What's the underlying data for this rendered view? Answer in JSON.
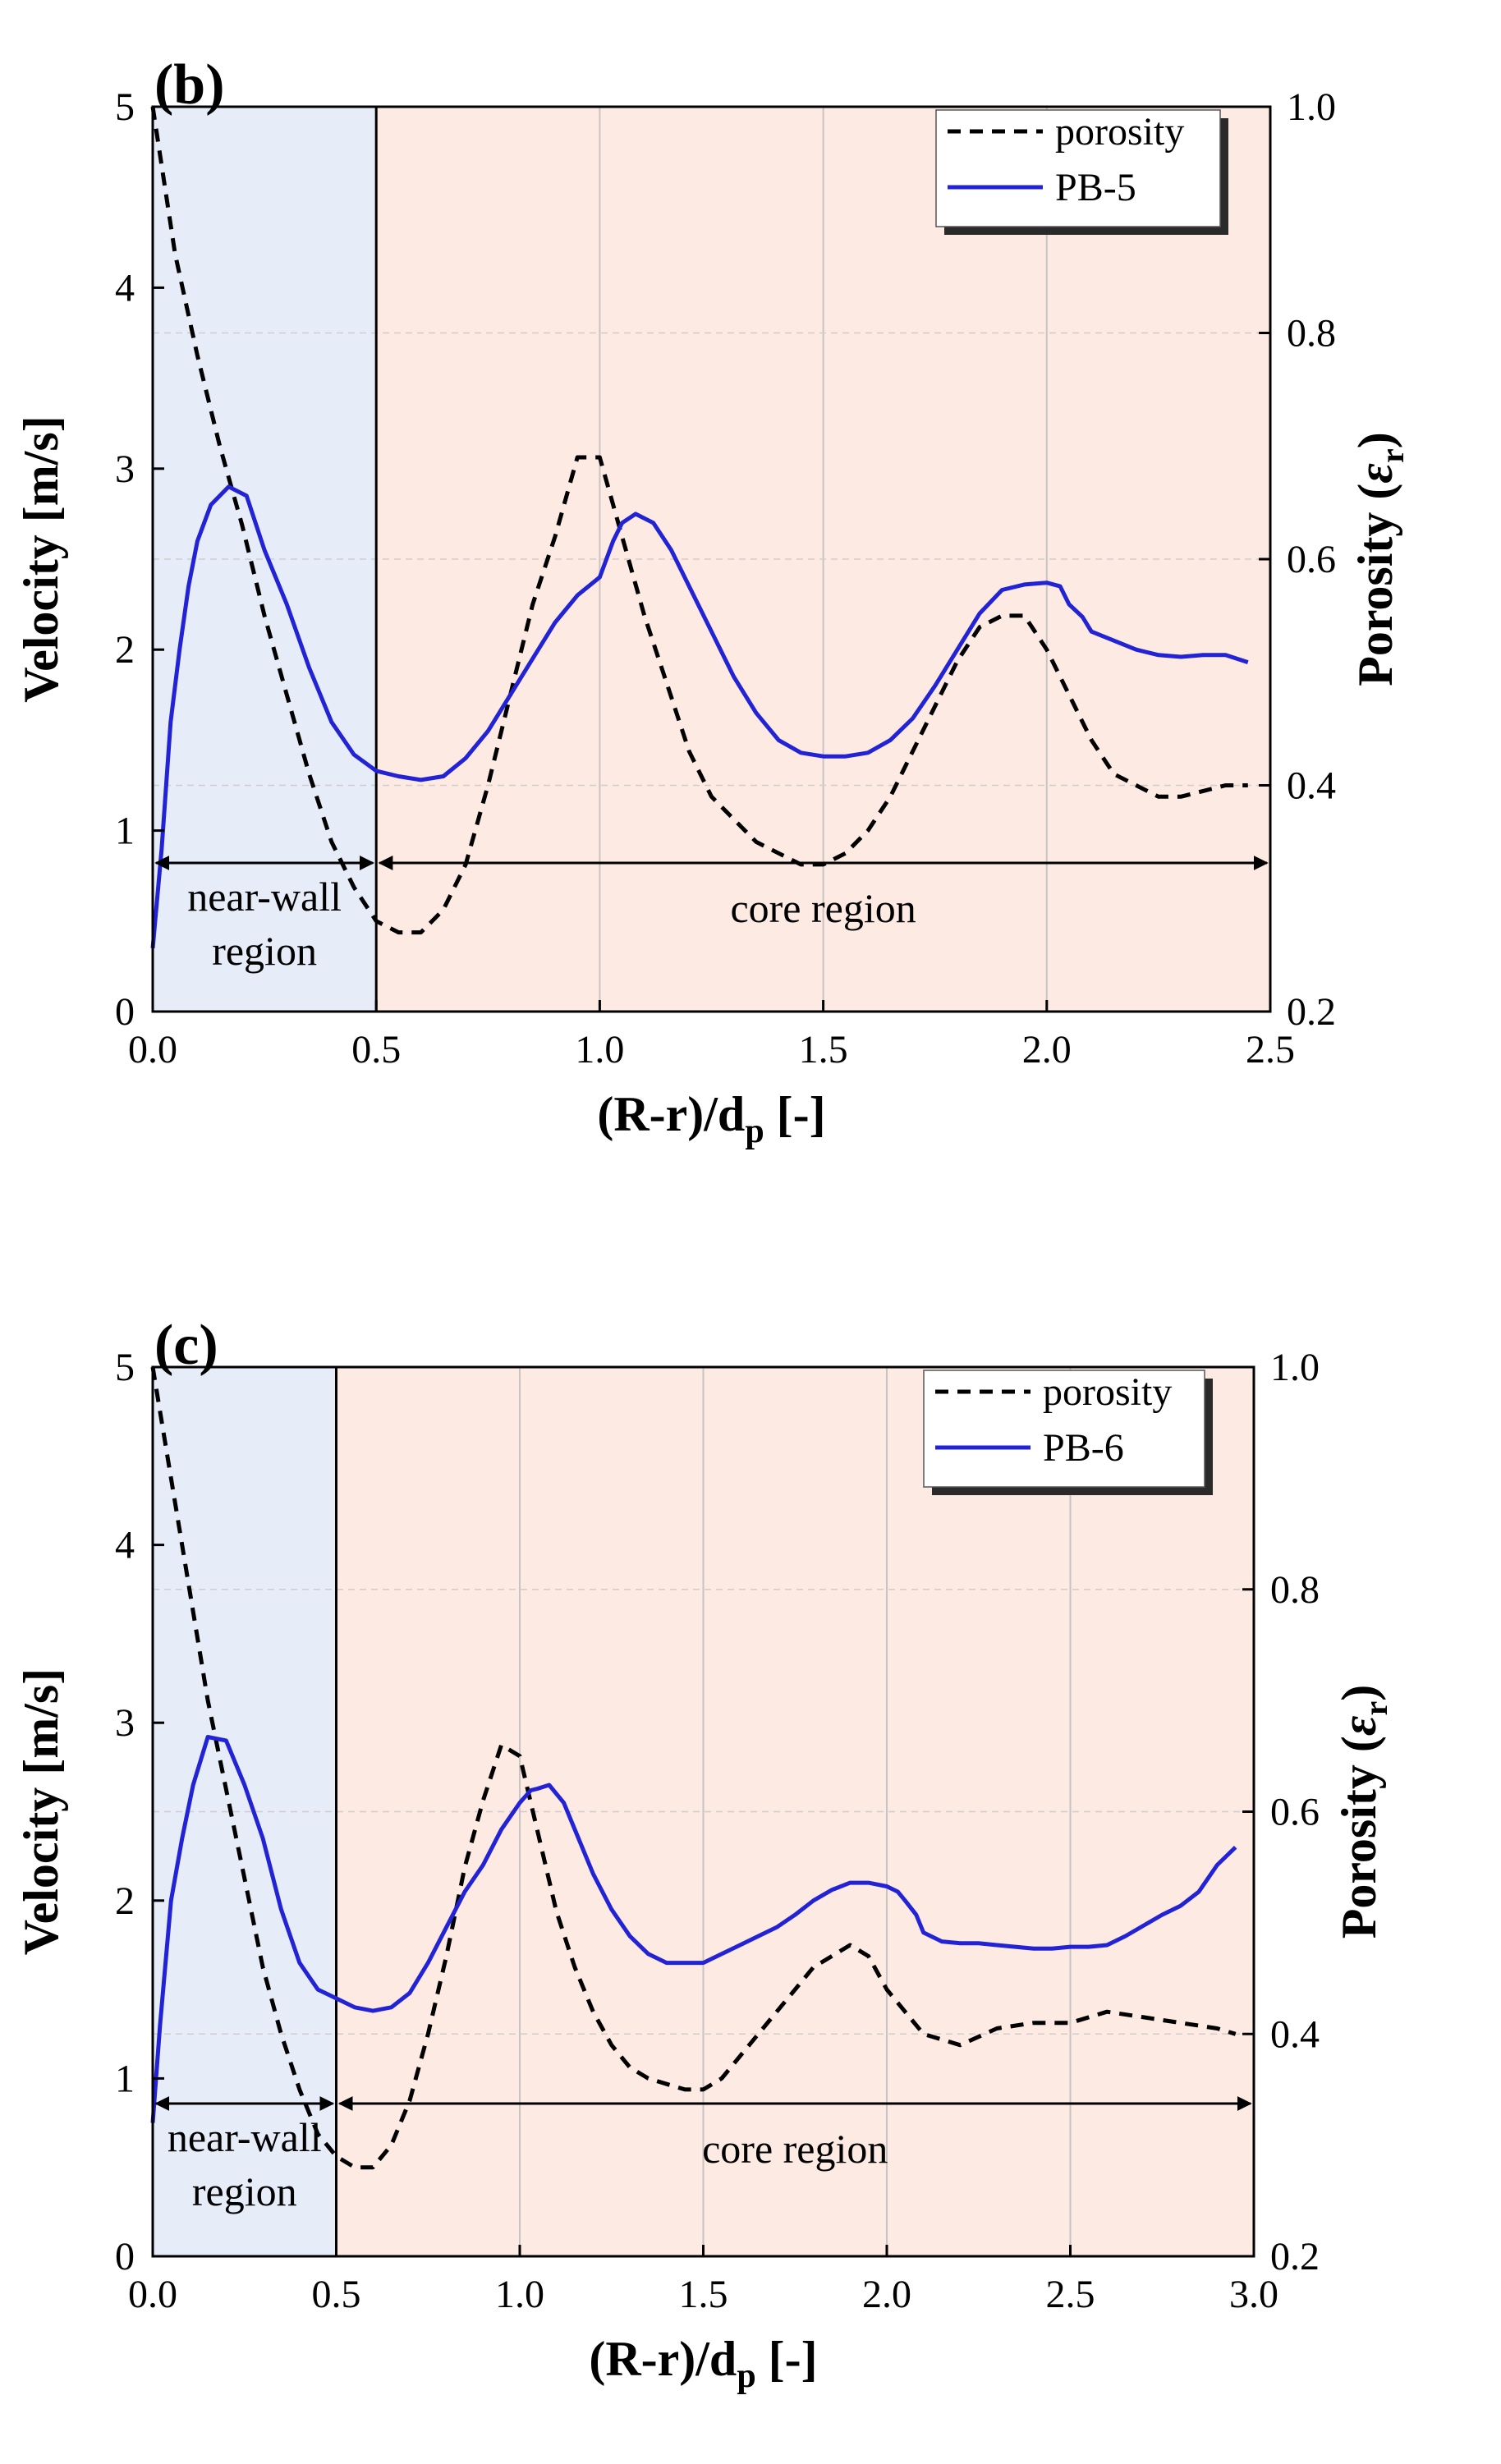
{
  "chart_data": [
    {
      "type": "line",
      "panel_label": "(b)",
      "xlabel": "(R-r)/d",
      "xlabel_sub": "p",
      "xlabel_suffix": " [-]",
      "ylabel": "Velocity [m/s]",
      "y2label": "Porosity (",
      "y2label_sym": "ε",
      "y2label_sub": "r",
      "y2label_end": ")",
      "xlim": [
        0,
        2.5
      ],
      "ylim": [
        0,
        5
      ],
      "y2lim": [
        0.2,
        1.0
      ],
      "xticks": [
        "0.0",
        "0.5",
        "1.0",
        "1.5",
        "2.0",
        "2.5"
      ],
      "yticks": [
        "0",
        "1",
        "2",
        "3",
        "4",
        "5"
      ],
      "y2ticks": [
        "0.2",
        "0.4",
        "0.6",
        "0.8",
        "1.0"
      ],
      "grid": "vertical",
      "regions": {
        "near_wall": {
          "x": [
            0,
            0.5
          ],
          "color": "#e6ecf8",
          "label_line1": "near-wall",
          "label_line2": "region"
        },
        "core": {
          "x": [
            0.5,
            2.5
          ],
          "color": "#fdeae2",
          "label": "core region"
        }
      },
      "legend": "top-right",
      "series": [
        {
          "name": "porosity",
          "axis": "right",
          "style": "dashed",
          "color": "#000000",
          "x": [
            0.0,
            0.05,
            0.1,
            0.15,
            0.2,
            0.25,
            0.3,
            0.35,
            0.4,
            0.45,
            0.5,
            0.55,
            0.6,
            0.65,
            0.7,
            0.75,
            0.8,
            0.85,
            0.9,
            0.95,
            1.0,
            1.05,
            1.1,
            1.15,
            1.2,
            1.25,
            1.3,
            1.35,
            1.4,
            1.45,
            1.5,
            1.55,
            1.6,
            1.65,
            1.7,
            1.75,
            1.8,
            1.85,
            1.9,
            1.95,
            2.0,
            2.05,
            2.1,
            2.15,
            2.2,
            2.25,
            2.3,
            2.35,
            2.4,
            2.45
          ],
          "values": [
            1.0,
            0.87,
            0.78,
            0.7,
            0.63,
            0.55,
            0.48,
            0.41,
            0.35,
            0.31,
            0.28,
            0.27,
            0.27,
            0.29,
            0.33,
            0.4,
            0.48,
            0.56,
            0.62,
            0.69,
            0.69,
            0.62,
            0.55,
            0.49,
            0.43,
            0.39,
            0.37,
            0.35,
            0.34,
            0.33,
            0.33,
            0.34,
            0.36,
            0.39,
            0.43,
            0.47,
            0.51,
            0.54,
            0.55,
            0.55,
            0.52,
            0.48,
            0.44,
            0.41,
            0.4,
            0.39,
            0.39,
            0.395,
            0.4,
            0.4
          ]
        },
        {
          "name": "PB-5",
          "axis": "left",
          "style": "solid",
          "color": "#2323d6",
          "x": [
            0.0,
            0.02,
            0.04,
            0.06,
            0.08,
            0.1,
            0.13,
            0.17,
            0.21,
            0.25,
            0.3,
            0.35,
            0.4,
            0.45,
            0.5,
            0.55,
            0.6,
            0.65,
            0.7,
            0.75,
            0.8,
            0.85,
            0.9,
            0.95,
            1.0,
            1.03,
            1.05,
            1.08,
            1.12,
            1.16,
            1.2,
            1.25,
            1.3,
            1.35,
            1.4,
            1.45,
            1.5,
            1.55,
            1.6,
            1.65,
            1.7,
            1.75,
            1.8,
            1.85,
            1.9,
            1.95,
            2.0,
            2.03,
            2.05,
            2.08,
            2.1,
            2.15,
            2.2,
            2.25,
            2.3,
            2.35,
            2.4,
            2.45
          ],
          "values": [
            0.35,
            0.9,
            1.6,
            2.0,
            2.35,
            2.6,
            2.8,
            2.9,
            2.85,
            2.55,
            2.25,
            1.9,
            1.6,
            1.42,
            1.33,
            1.3,
            1.28,
            1.3,
            1.4,
            1.55,
            1.75,
            1.95,
            2.15,
            2.3,
            2.4,
            2.6,
            2.7,
            2.75,
            2.7,
            2.55,
            2.35,
            2.1,
            1.85,
            1.65,
            1.5,
            1.43,
            1.41,
            1.41,
            1.43,
            1.5,
            1.62,
            1.8,
            2.0,
            2.2,
            2.33,
            2.36,
            2.37,
            2.35,
            2.25,
            2.18,
            2.1,
            2.05,
            2.0,
            1.97,
            1.96,
            1.97,
            1.97,
            1.93
          ]
        }
      ]
    },
    {
      "type": "line",
      "panel_label": "(c)",
      "xlabel": "(R-r)/d",
      "xlabel_sub": "p",
      "xlabel_suffix": " [-]",
      "ylabel": "Velocity [m/s]",
      "y2label": "Porosity (",
      "y2label_sym": "ε",
      "y2label_sub": "r",
      "y2label_end": ")",
      "xlim": [
        0,
        3.0
      ],
      "ylim": [
        0,
        5
      ],
      "y2lim": [
        0.2,
        1.0
      ],
      "xticks": [
        "0.0",
        "0.5",
        "1.0",
        "1.5",
        "2.0",
        "2.5",
        "3.0"
      ],
      "yticks": [
        "0",
        "1",
        "2",
        "3",
        "4",
        "5"
      ],
      "y2ticks": [
        "0.2",
        "0.4",
        "0.6",
        "0.8",
        "1.0"
      ],
      "grid": "vertical",
      "regions": {
        "near_wall": {
          "x": [
            0,
            0.5
          ],
          "color": "#e6ecf8",
          "label_line1": "near-wall",
          "label_line2": "region"
        },
        "core": {
          "x": [
            0.5,
            3.0
          ],
          "color": "#fdeae2",
          "label": "core region"
        }
      },
      "legend": "top-right",
      "series": [
        {
          "name": "porosity",
          "axis": "right",
          "style": "dashed",
          "color": "#000000",
          "x": [
            0.0,
            0.05,
            0.1,
            0.15,
            0.2,
            0.25,
            0.3,
            0.35,
            0.4,
            0.45,
            0.5,
            0.55,
            0.6,
            0.65,
            0.7,
            0.75,
            0.8,
            0.85,
            0.9,
            0.95,
            1.0,
            1.05,
            1.1,
            1.15,
            1.2,
            1.25,
            1.3,
            1.35,
            1.4,
            1.45,
            1.5,
            1.55,
            1.6,
            1.65,
            1.7,
            1.75,
            1.8,
            1.85,
            1.9,
            1.95,
            2.0,
            2.05,
            2.1,
            2.15,
            2.2,
            2.3,
            2.4,
            2.5,
            2.6,
            2.7,
            2.8,
            2.9,
            2.95
          ],
          "values": [
            1.0,
            0.9,
            0.8,
            0.7,
            0.62,
            0.54,
            0.46,
            0.4,
            0.35,
            0.31,
            0.29,
            0.28,
            0.28,
            0.3,
            0.34,
            0.4,
            0.47,
            0.55,
            0.61,
            0.66,
            0.65,
            0.58,
            0.51,
            0.46,
            0.42,
            0.39,
            0.37,
            0.36,
            0.355,
            0.35,
            0.35,
            0.36,
            0.38,
            0.4,
            0.42,
            0.44,
            0.46,
            0.47,
            0.48,
            0.47,
            0.44,
            0.42,
            0.4,
            0.395,
            0.39,
            0.405,
            0.41,
            0.41,
            0.42,
            0.415,
            0.41,
            0.405,
            0.4
          ]
        },
        {
          "name": "PB-6",
          "axis": "left",
          "style": "solid",
          "color": "#2323d6",
          "x": [
            0.0,
            0.02,
            0.05,
            0.08,
            0.11,
            0.15,
            0.2,
            0.25,
            0.3,
            0.35,
            0.4,
            0.45,
            0.5,
            0.55,
            0.6,
            0.65,
            0.7,
            0.75,
            0.8,
            0.85,
            0.9,
            0.95,
            1.0,
            1.03,
            1.05,
            1.08,
            1.12,
            1.16,
            1.2,
            1.25,
            1.3,
            1.35,
            1.4,
            1.45,
            1.5,
            1.55,
            1.6,
            1.65,
            1.7,
            1.75,
            1.8,
            1.85,
            1.9,
            1.95,
            2.0,
            2.03,
            2.05,
            2.08,
            2.1,
            2.15,
            2.2,
            2.25,
            2.3,
            2.35,
            2.4,
            2.45,
            2.5,
            2.55,
            2.6,
            2.65,
            2.7,
            2.75,
            2.8,
            2.85,
            2.9,
            2.95
          ],
          "values": [
            0.75,
            1.3,
            2.0,
            2.35,
            2.65,
            2.92,
            2.9,
            2.65,
            2.35,
            1.95,
            1.65,
            1.5,
            1.45,
            1.4,
            1.38,
            1.4,
            1.48,
            1.65,
            1.85,
            2.05,
            2.2,
            2.4,
            2.55,
            2.62,
            2.63,
            2.65,
            2.55,
            2.35,
            2.15,
            1.95,
            1.8,
            1.7,
            1.65,
            1.65,
            1.65,
            1.7,
            1.75,
            1.8,
            1.85,
            1.92,
            2.0,
            2.06,
            2.1,
            2.1,
            2.08,
            2.05,
            2.0,
            1.92,
            1.82,
            1.77,
            1.76,
            1.76,
            1.75,
            1.74,
            1.73,
            1.73,
            1.74,
            1.74,
            1.75,
            1.8,
            1.86,
            1.92,
            1.97,
            2.05,
            2.2,
            2.3
          ]
        }
      ]
    }
  ]
}
